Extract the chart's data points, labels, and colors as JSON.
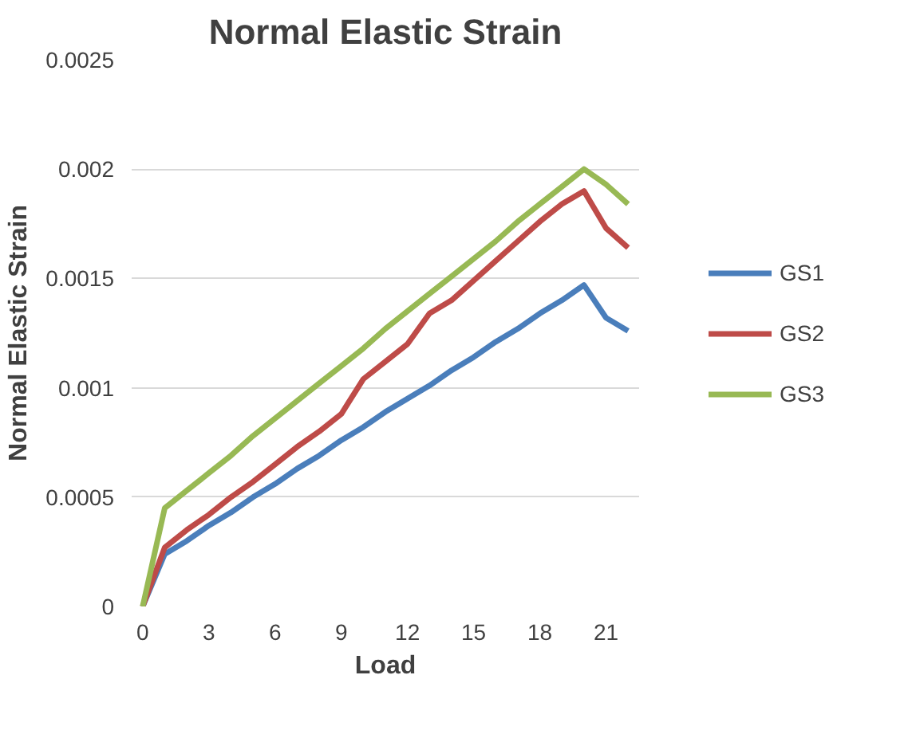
{
  "chart_data": {
    "type": "line",
    "title": "Normal Elastic Strain",
    "xlabel": "Load",
    "ylabel": "Normal Elastic Strain",
    "x": [
      0,
      1,
      2,
      3,
      4,
      5,
      6,
      7,
      8,
      9,
      10,
      11,
      12,
      13,
      14,
      15,
      16,
      17,
      18,
      19,
      20,
      21,
      22
    ],
    "xlim": [
      -0.5,
      22.5
    ],
    "xticks": [
      0,
      3,
      6,
      9,
      12,
      15,
      18,
      21
    ],
    "ylim": [
      0,
      0.0025
    ],
    "yticks": [
      0,
      0.0005,
      0.001,
      0.0015,
      0.002,
      0.0025
    ],
    "grid": "y",
    "legend": "right",
    "marker": "none",
    "series": [
      {
        "name": "GS1",
        "color": "#4a7ebb",
        "values": [
          0,
          0.00024,
          0.0003,
          0.00037,
          0.00043,
          0.0005,
          0.00056,
          0.00063,
          0.00069,
          0.00076,
          0.00082,
          0.00089,
          0.00095,
          0.00101,
          0.00108,
          0.00114,
          0.00121,
          0.00127,
          0.00134,
          0.0014,
          0.00147,
          0.00132,
          0.00126
        ]
      },
      {
        "name": "GS2",
        "color": "#be4b48",
        "values": [
          0,
          0.00027,
          0.00035,
          0.00042,
          0.0005,
          0.00057,
          0.00065,
          0.00073,
          0.0008,
          0.00088,
          0.00104,
          0.00112,
          0.0012,
          0.00134,
          0.0014,
          0.00149,
          0.00158,
          0.00167,
          0.00176,
          0.00184,
          0.0019,
          0.00173,
          0.00164
        ]
      },
      {
        "name": "GS3",
        "color": "#98b954",
        "values": [
          0,
          0.00045,
          0.00053,
          0.00061,
          0.00069,
          0.00078,
          0.00086,
          0.00094,
          0.00102,
          0.0011,
          0.00118,
          0.00127,
          0.00135,
          0.00143,
          0.00151,
          0.00159,
          0.00167,
          0.00176,
          0.00184,
          0.00192,
          0.002,
          0.00193,
          0.00184
        ]
      }
    ]
  }
}
